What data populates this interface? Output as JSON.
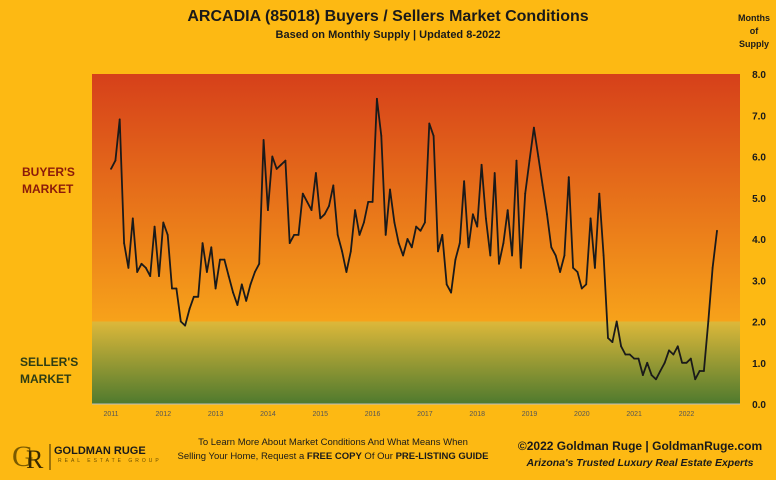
{
  "header": {
    "title": "ARCADIA (85018) Buyers / Sellers Market Conditions",
    "subtitle": "Based on Monthly Supply | Updated 8-2022",
    "y_axis_title_lines": [
      "Months",
      "of",
      "Supply"
    ]
  },
  "zones": {
    "buyers_lines": [
      "BUYER'S",
      "MARKET"
    ],
    "sellers_lines": [
      "SELLER'S",
      "MARKET"
    ]
  },
  "colors": {
    "background": "#FDB913",
    "buyers_zone_top": "#D6401A",
    "buyers_zone_bottom": "#F7A21A",
    "sellers_zone_top": "#DDB83A",
    "sellers_zone_bottom": "#4F7A2E",
    "line": "#1a1a1a"
  },
  "chart_data": {
    "type": "line",
    "title": "ARCADIA (85018) Buyers / Sellers Market Conditions",
    "subtitle": "Based on Monthly Supply | Updated 8-2022",
    "ylabel": "Months of Supply",
    "ylim": [
      0,
      8
    ],
    "yticks": [
      "0.0",
      "1.0",
      "2.0",
      "3.0",
      "4.0",
      "5.0",
      "6.0",
      "7.0",
      "8.0"
    ],
    "y_axis_position": "right",
    "x_tick_labels": [
      "2011",
      "2012",
      "2013",
      "2014",
      "2015",
      "2016",
      "2017",
      "2018",
      "2019",
      "2020",
      "2021",
      "2022"
    ],
    "x_start": "2011-01",
    "x_end": "2022-08",
    "series": [
      {
        "values": [
          5.7,
          5.9,
          6.9,
          3.9,
          3.3,
          4.5,
          3.2,
          3.4,
          3.3,
          3.1,
          4.3,
          3.1,
          4.4,
          4.1,
          2.8,
          2.8,
          2.0,
          1.9,
          2.3,
          2.6,
          2.6,
          3.9,
          3.2,
          3.8,
          2.8,
          3.5,
          3.5,
          3.1,
          2.7,
          2.4,
          2.9,
          2.5,
          2.9,
          3.2,
          3.4,
          6.4,
          4.7,
          6.0,
          5.7,
          5.8,
          5.9,
          3.9,
          4.1,
          4.1,
          5.1,
          4.9,
          4.7,
          5.6,
          4.5,
          4.6,
          4.8,
          5.3,
          4.1,
          3.7,
          3.2,
          3.7,
          4.7,
          4.1,
          4.4,
          4.9,
          4.9,
          7.4,
          6.5,
          4.1,
          5.2,
          4.4,
          3.9,
          3.6,
          4.0,
          3.8,
          4.3,
          4.2,
          4.4,
          6.8,
          6.5,
          3.7,
          4.1,
          2.9,
          2.7,
          3.5,
          3.9,
          5.4,
          3.8,
          4.6,
          4.3,
          5.8,
          4.5,
          3.6,
          5.6,
          3.4,
          3.9,
          4.7,
          3.6,
          5.9,
          3.3,
          5.1,
          5.9,
          6.7,
          6.0,
          5.3,
          4.6,
          3.8,
          3.6,
          3.2,
          3.6,
          5.5,
          3.3,
          3.2,
          2.8,
          2.9,
          4.5,
          3.3,
          5.1,
          3.6,
          1.6,
          1.5,
          2.0,
          1.4,
          1.2,
          1.2,
          1.1,
          1.1,
          0.7,
          1.0,
          0.7,
          0.6,
          0.8,
          1.0,
          1.3,
          1.2,
          1.4,
          1.0,
          1.0,
          1.1,
          0.6,
          0.8,
          0.8,
          2.0,
          3.3,
          4.2
        ]
      }
    ],
    "bands": [
      {
        "label": "BUYER'S MARKET",
        "from": 2.0,
        "to": 8.0
      },
      {
        "label": "SELLER'S MARKET",
        "from": 0.0,
        "to": 2.0
      }
    ],
    "grid": false,
    "legend": "none"
  },
  "footer": {
    "logo_text": "GOLDMAN RUGE",
    "logo_sub": "REAL ESTATE GROUP",
    "cta_line1": "To Learn More About Market Conditions And What Means When",
    "cta_line2_pre": "Selling Your Home, Request a ",
    "cta_bold1": "FREE COPY",
    "cta_mid": " Of Our ",
    "cta_bold2": "PRE-LISTING GUIDE",
    "copyright": "©2022 Goldman Ruge  |  GoldmanRuge.com",
    "tagline": "Arizona's Trusted Luxury Real Estate Experts"
  }
}
